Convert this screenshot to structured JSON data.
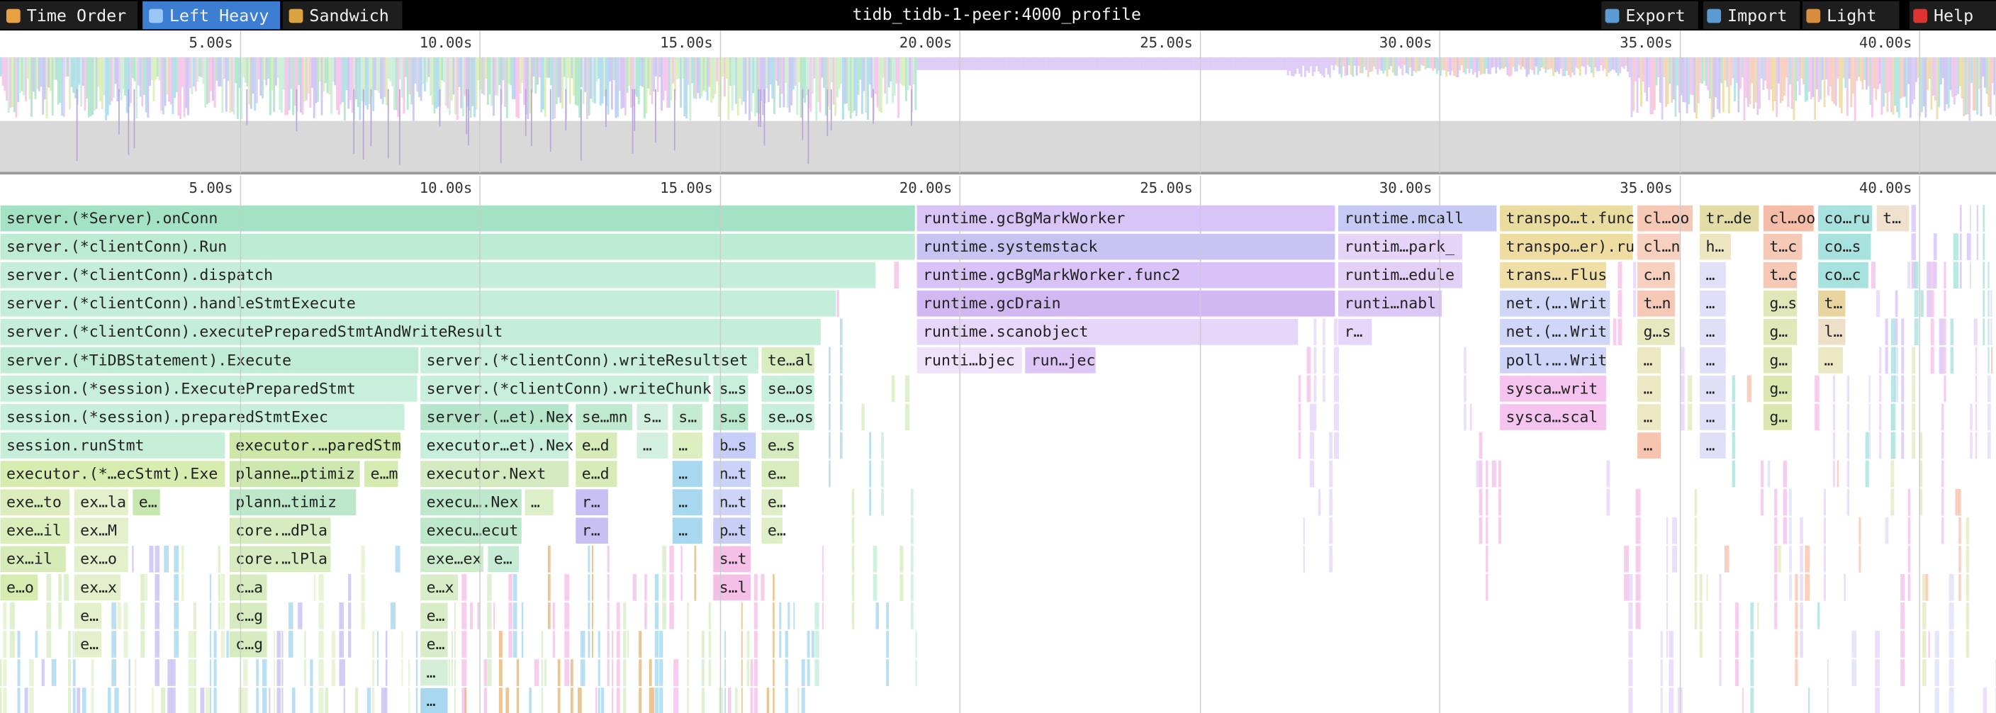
{
  "toolbar": {
    "left_buttons": [
      "Time Order",
      "Left Heavy",
      "Sandwich"
    ],
    "title": "tidb_tidb-1-peer:4000_profile",
    "right_buttons": [
      "Export",
      "Import",
      "Light",
      "Help"
    ]
  },
  "minimap": {
    "ticks": [
      "5.00s",
      "10.00s",
      "15.00s",
      "20.00s",
      "25.00s",
      "30.00s",
      "35.00s",
      "40.00s"
    ]
  },
  "timeline": {
    "ticks": [
      "5.00s",
      "10.00s",
      "15.00s",
      "20.00s",
      "25.00s",
      "30.00s",
      "35.00s",
      "40.00s"
    ]
  },
  "flamegraph": {
    "rows": [
      [
        "server.(*Server).onConn",
        "runtime.gcBgMarkWorker",
        "runtime.mcall",
        "transpo…t.func",
        "cl…oo",
        "tr…de",
        "cl…oo",
        "co…ru",
        "t…"
      ],
      [
        "server.(*clientConn).Run",
        "runtime.systemstack",
        "runtim…park_",
        "transpo…er).ru",
        "cl…n",
        "h…",
        "t…c",
        "co…s"
      ],
      [
        "server.(*clientConn).dispatch",
        "runtime.gcBgMarkWorker.func2",
        "runtim…edule",
        "trans….Flus",
        "c…n",
        "…",
        "t…c",
        "co…c"
      ],
      [
        "server.(*clientConn).handleStmtExecute",
        "runtime.gcDrain",
        "runti…nabl",
        "net.(….Writ",
        "t…n",
        "…",
        "g…s",
        "t…"
      ],
      [
        "server.(*clientConn).executePreparedStmtAndWriteResult",
        "runtime.scanobject",
        "r…",
        "net.(….Writ",
        "g…s",
        "…",
        "g…",
        "l…"
      ],
      [
        "server.(*TiDBStatement).Execute",
        "server.(*clientConn).writeResultset",
        "te…al",
        "runti…bjec",
        "run…jec",
        "poll.….Writ",
        "…",
        "…",
        "g…",
        "…"
      ],
      [
        "session.(*session).ExecutePreparedStmt",
        "server.(*clientConn).writeChunks",
        "s…s",
        "se…os",
        "sysca…writ",
        "…",
        "…",
        "g…"
      ],
      [
        "session.(*session).preparedStmtExec",
        "server.(…et).Nex",
        "se…mn",
        "s…",
        "s…",
        "s…s",
        "se…os",
        "sysca…scal",
        "…",
        "…",
        "g…"
      ],
      [
        "session.runStmt",
        "executor.…paredStm",
        "executor…et).Nex",
        "e…d",
        "…",
        "…",
        "b…s",
        "e…s",
        "…",
        "…"
      ],
      [
        "executor.(*…ecStmt).Exe",
        "planne…ptimiz",
        "e…m",
        "executor.Next",
        "e…d",
        "…",
        "n…t",
        "e…"
      ],
      [
        "exe…to",
        "ex…la",
        "e…",
        "plann…timiz",
        "execu….Nex",
        "…",
        "r…",
        "…",
        "n…t",
        "e…"
      ],
      [
        "exe…il",
        "ex…M",
        "core.…dPla",
        "execu…ecut",
        "r…",
        "…",
        "p…t",
        "e…"
      ],
      [
        "ex…il",
        "ex…o",
        "core.…lPla",
        "exe…ex",
        "e…",
        "s…t"
      ],
      [
        "e…o",
        "ex…x",
        "c…a",
        "e…x",
        "s…l"
      ],
      [
        "e…",
        "c…g",
        "e…"
      ],
      [
        "e…",
        "c…g",
        "e…"
      ],
      [
        "…"
      ],
      [
        "…"
      ]
    ]
  }
}
